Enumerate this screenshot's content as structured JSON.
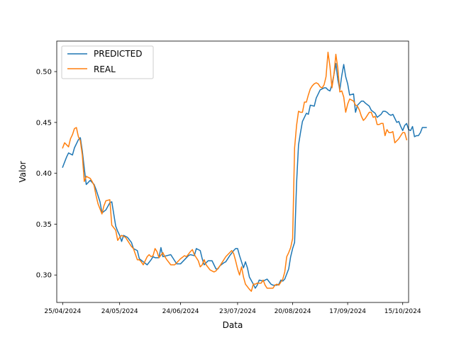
{
  "chart_data": {
    "type": "line",
    "title": "",
    "xlabel": "Data",
    "ylabel": "Valor",
    "x_start": "2024-04-25",
    "xlim": [
      "2024-04-22",
      "2024-10-18"
    ],
    "ylim": [
      0.273,
      0.53
    ],
    "grid": false,
    "legend_position": "top-left",
    "x_ticks": [
      {
        "label": "25/04/2024",
        "date": "2024-04-25"
      },
      {
        "label": "24/05/2024",
        "date": "2024-05-24"
      },
      {
        "label": "24/06/2024",
        "date": "2024-06-24"
      },
      {
        "label": "23/07/2024",
        "date": "2024-07-23"
      },
      {
        "label": "20/08/2024",
        "date": "2024-08-20"
      },
      {
        "label": "17/09/2024",
        "date": "2024-09-17"
      },
      {
        "label": "15/10/2024",
        "date": "2024-10-15"
      }
    ],
    "y_ticks": [
      {
        "label": "0.30",
        "value": 0.3
      },
      {
        "label": "0.35",
        "value": 0.35
      },
      {
        "label": "0.40",
        "value": 0.4
      },
      {
        "label": "0.45",
        "value": 0.45
      },
      {
        "label": "0.50",
        "value": 0.5
      }
    ],
    "series": [
      {
        "name": "PREDICTED",
        "color": "#1f77b4",
        "points": [
          [
            0,
            0.406
          ],
          [
            2,
            0.416
          ],
          [
            3,
            0.42
          ],
          [
            5,
            0.418
          ],
          [
            6,
            0.425
          ],
          [
            8,
            0.433
          ],
          [
            9,
            0.435
          ],
          [
            10,
            0.422
          ],
          [
            11,
            0.405
          ],
          [
            12,
            0.389
          ],
          [
            14,
            0.393
          ],
          [
            16,
            0.389
          ],
          [
            17,
            0.384
          ],
          [
            18,
            0.378
          ],
          [
            19,
            0.372
          ],
          [
            20,
            0.361
          ],
          [
            22,
            0.364
          ],
          [
            24,
            0.371
          ],
          [
            25,
            0.372
          ],
          [
            27,
            0.348
          ],
          [
            28,
            0.343
          ],
          [
            29,
            0.339
          ],
          [
            30,
            0.333
          ],
          [
            31,
            0.339
          ],
          [
            33,
            0.337
          ],
          [
            35,
            0.332
          ],
          [
            36,
            0.326
          ],
          [
            38,
            0.324
          ],
          [
            39,
            0.316
          ],
          [
            41,
            0.313
          ],
          [
            43,
            0.31
          ],
          [
            45,
            0.315
          ],
          [
            46,
            0.318
          ],
          [
            47,
            0.317
          ],
          [
            49,
            0.317
          ],
          [
            50,
            0.327
          ],
          [
            51,
            0.318
          ],
          [
            53,
            0.319
          ],
          [
            55,
            0.32
          ],
          [
            57,
            0.314
          ],
          [
            58,
            0.311
          ],
          [
            60,
            0.311
          ],
          [
            62,
            0.315
          ],
          [
            64,
            0.319
          ],
          [
            65,
            0.32
          ],
          [
            67,
            0.319
          ],
          [
            68,
            0.326
          ],
          [
            70,
            0.324
          ],
          [
            71,
            0.316
          ],
          [
            72,
            0.31
          ],
          [
            73,
            0.312
          ],
          [
            74,
            0.314
          ],
          [
            76,
            0.314
          ],
          [
            77,
            0.31
          ],
          [
            78,
            0.306
          ],
          [
            79,
            0.306
          ],
          [
            80,
            0.309
          ],
          [
            82,
            0.312
          ],
          [
            83,
            0.313
          ],
          [
            85,
            0.319
          ],
          [
            87,
            0.324
          ],
          [
            88,
            0.326
          ],
          [
            89,
            0.326
          ],
          [
            90,
            0.319
          ],
          [
            92,
            0.307
          ],
          [
            93,
            0.313
          ],
          [
            94,
            0.307
          ],
          [
            95,
            0.298
          ],
          [
            97,
            0.291
          ],
          [
            98,
            0.287
          ],
          [
            99,
            0.29
          ],
          [
            100,
            0.295
          ],
          [
            102,
            0.294
          ],
          [
            104,
            0.296
          ],
          [
            106,
            0.291
          ],
          [
            107,
            0.29
          ],
          [
            109,
            0.29
          ],
          [
            110,
            0.291
          ],
          [
            111,
            0.295
          ],
          [
            112,
            0.294
          ],
          [
            113,
            0.296
          ],
          [
            115,
            0.306
          ],
          [
            116,
            0.318
          ],
          [
            117,
            0.326
          ],
          [
            118,
            0.332
          ],
          [
            119,
            0.39
          ],
          [
            120,
            0.428
          ],
          [
            121,
            0.44
          ],
          [
            122,
            0.451
          ],
          [
            124,
            0.459
          ],
          [
            125,
            0.458
          ],
          [
            126,
            0.467
          ],
          [
            128,
            0.466
          ],
          [
            129,
            0.474
          ],
          [
            130,
            0.478
          ],
          [
            131,
            0.482
          ],
          [
            133,
            0.484
          ],
          [
            134,
            0.484
          ],
          [
            135,
            0.482
          ],
          [
            136,
            0.481
          ],
          [
            137,
            0.487
          ],
          [
            138,
            0.497
          ],
          [
            139,
            0.508
          ],
          [
            140,
            0.492
          ],
          [
            141,
            0.482
          ],
          [
            142,
            0.496
          ],
          [
            143,
            0.507
          ],
          [
            144,
            0.495
          ],
          [
            145,
            0.488
          ],
          [
            146,
            0.477
          ],
          [
            148,
            0.478
          ],
          [
            149,
            0.46
          ],
          [
            150,
            0.467
          ],
          [
            152,
            0.471
          ],
          [
            153,
            0.471
          ],
          [
            154,
            0.469
          ],
          [
            156,
            0.466
          ],
          [
            157,
            0.462
          ],
          [
            159,
            0.459
          ],
          [
            160,
            0.455
          ],
          [
            162,
            0.458
          ],
          [
            163,
            0.461
          ],
          [
            164,
            0.461
          ],
          [
            165,
            0.46
          ],
          [
            166,
            0.458
          ],
          [
            167,
            0.457
          ],
          [
            168,
            0.458
          ],
          [
            169,
            0.454
          ],
          [
            170,
            0.45
          ],
          [
            171,
            0.451
          ],
          [
            172,
            0.446
          ],
          [
            173,
            0.442
          ],
          [
            174,
            0.447
          ],
          [
            175,
            0.449
          ],
          [
            176,
            0.443
          ],
          [
            177,
            0.442
          ],
          [
            178,
            0.446
          ],
          [
            179,
            0.436
          ],
          [
            180,
            0.437
          ],
          [
            181,
            0.437
          ],
          [
            182,
            0.44
          ],
          [
            183,
            0.445
          ],
          [
            184,
            0.445
          ],
          [
            185,
            0.445
          ]
        ]
      },
      {
        "name": "REAL",
        "color": "#ff7f0e",
        "points": [
          [
            0,
            0.425
          ],
          [
            1,
            0.43
          ],
          [
            3,
            0.426
          ],
          [
            4,
            0.434
          ],
          [
            5,
            0.438
          ],
          [
            6,
            0.444
          ],
          [
            7,
            0.445
          ],
          [
            8,
            0.436
          ],
          [
            9,
            0.432
          ],
          [
            10,
            0.418
          ],
          [
            11,
            0.392
          ],
          [
            12,
            0.397
          ],
          [
            14,
            0.395
          ],
          [
            15,
            0.392
          ],
          [
            16,
            0.388
          ],
          [
            17,
            0.378
          ],
          [
            18,
            0.37
          ],
          [
            19,
            0.365
          ],
          [
            20,
            0.36
          ],
          [
            21,
            0.368
          ],
          [
            22,
            0.373
          ],
          [
            24,
            0.374
          ],
          [
            25,
            0.349
          ],
          [
            27,
            0.344
          ],
          [
            28,
            0.334
          ],
          [
            29,
            0.337
          ],
          [
            30,
            0.339
          ],
          [
            32,
            0.337
          ],
          [
            33,
            0.334
          ],
          [
            35,
            0.328
          ],
          [
            36,
            0.326
          ],
          [
            38,
            0.315
          ],
          [
            39,
            0.315
          ],
          [
            40,
            0.313
          ],
          [
            41,
            0.31
          ],
          [
            43,
            0.318
          ],
          [
            44,
            0.32
          ],
          [
            45,
            0.318
          ],
          [
            46,
            0.319
          ],
          [
            47,
            0.326
          ],
          [
            48,
            0.323
          ],
          [
            49,
            0.317
          ],
          [
            51,
            0.322
          ],
          [
            52,
            0.318
          ],
          [
            53,
            0.315
          ],
          [
            55,
            0.31
          ],
          [
            57,
            0.31
          ],
          [
            58,
            0.312
          ],
          [
            60,
            0.316
          ],
          [
            62,
            0.319
          ],
          [
            63,
            0.318
          ],
          [
            65,
            0.323
          ],
          [
            66,
            0.325
          ],
          [
            67,
            0.32
          ],
          [
            69,
            0.314
          ],
          [
            70,
            0.308
          ],
          [
            71,
            0.31
          ],
          [
            72,
            0.315
          ],
          [
            73,
            0.31
          ],
          [
            75,
            0.305
          ],
          [
            77,
            0.303
          ],
          [
            78,
            0.304
          ],
          [
            80,
            0.309
          ],
          [
            82,
            0.315
          ],
          [
            83,
            0.318
          ],
          [
            85,
            0.322
          ],
          [
            86,
            0.324
          ],
          [
            87,
            0.321
          ],
          [
            88,
            0.314
          ],
          [
            89,
            0.306
          ],
          [
            90,
            0.3
          ],
          [
            91,
            0.308
          ],
          [
            92,
            0.298
          ],
          [
            93,
            0.291
          ],
          [
            95,
            0.286
          ],
          [
            96,
            0.284
          ],
          [
            97,
            0.291
          ],
          [
            98,
            0.291
          ],
          [
            99,
            0.292
          ],
          [
            101,
            0.292
          ],
          [
            102,
            0.295
          ],
          [
            103,
            0.29
          ],
          [
            104,
            0.287
          ],
          [
            105,
            0.287
          ],
          [
            107,
            0.287
          ],
          [
            108,
            0.29
          ],
          [
            109,
            0.291
          ],
          [
            110,
            0.29
          ],
          [
            111,
            0.293
          ],
          [
            112,
            0.296
          ],
          [
            113,
            0.303
          ],
          [
            114,
            0.318
          ],
          [
            115,
            0.322
          ],
          [
            116,
            0.327
          ],
          [
            117,
            0.336
          ],
          [
            118,
            0.425
          ],
          [
            119,
            0.447
          ],
          [
            120,
            0.461
          ],
          [
            121,
            0.46
          ],
          [
            122,
            0.46
          ],
          [
            123,
            0.47
          ],
          [
            124,
            0.47
          ],
          [
            125,
            0.477
          ],
          [
            126,
            0.483
          ],
          [
            127,
            0.486
          ],
          [
            128,
            0.488
          ],
          [
            129,
            0.489
          ],
          [
            130,
            0.488
          ],
          [
            131,
            0.485
          ],
          [
            132,
            0.484
          ],
          [
            133,
            0.487
          ],
          [
            134,
            0.495
          ],
          [
            135,
            0.519
          ],
          [
            136,
            0.505
          ],
          [
            137,
            0.484
          ],
          [
            138,
            0.497
          ],
          [
            139,
            0.517
          ],
          [
            140,
            0.503
          ],
          [
            141,
            0.48
          ],
          [
            142,
            0.481
          ],
          [
            143,
            0.475
          ],
          [
            144,
            0.46
          ],
          [
            145,
            0.468
          ],
          [
            146,
            0.473
          ],
          [
            148,
            0.471
          ],
          [
            149,
            0.467
          ],
          [
            150,
            0.466
          ],
          [
            151,
            0.462
          ],
          [
            152,
            0.456
          ],
          [
            153,
            0.452
          ],
          [
            154,
            0.454
          ],
          [
            155,
            0.457
          ],
          [
            156,
            0.46
          ],
          [
            157,
            0.46
          ],
          [
            158,
            0.455
          ],
          [
            159,
            0.456
          ],
          [
            160,
            0.448
          ],
          [
            161,
            0.448
          ],
          [
            162,
            0.449
          ],
          [
            163,
            0.449
          ],
          [
            164,
            0.437
          ],
          [
            165,
            0.443
          ],
          [
            166,
            0.44
          ],
          [
            167,
            0.44
          ],
          [
            168,
            0.441
          ],
          [
            169,
            0.43
          ],
          [
            170,
            0.432
          ],
          [
            171,
            0.434
          ],
          [
            172,
            0.437
          ],
          [
            173,
            0.44
          ],
          [
            174,
            0.44
          ],
          [
            175,
            0.433
          ]
        ]
      }
    ]
  }
}
